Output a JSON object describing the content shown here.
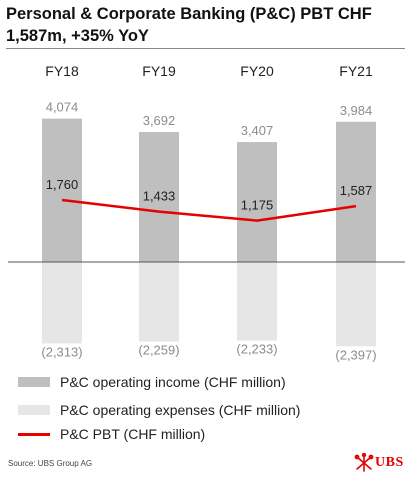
{
  "title": "Personal & Corporate Banking (P&C) PBT CHF 1,587m, +35% YoY",
  "source": "Source: UBS Group AG",
  "logo_text": "UBS",
  "colors": {
    "income": "#bfbfbf",
    "expenses": "#e6e6e6",
    "pbt": "#e60000",
    "axis": "#555555",
    "bar_label": "#8c8c8c"
  },
  "chart_data": {
    "type": "bar",
    "categories": [
      "FY18",
      "FY19",
      "FY20",
      "FY21"
    ],
    "series": [
      {
        "name": "P&C operating income (CHF million)",
        "type": "bar",
        "values": [
          4074,
          3692,
          3407,
          3984
        ],
        "labels": [
          "4,074",
          "3,692",
          "3,407",
          "3,984"
        ]
      },
      {
        "name": "P&C operating expenses (CHF million)",
        "type": "bar",
        "values": [
          -2313,
          -2259,
          -2233,
          -2397
        ],
        "labels": [
          "(2,313)",
          "(2,259)",
          "(2,233)",
          "(2,397)"
        ]
      },
      {
        "name": "P&C PBT (CHF million)",
        "type": "line",
        "values": [
          1760,
          1433,
          1175,
          1587
        ],
        "labels": [
          "1,760",
          "1,433",
          "1,175",
          "1,587"
        ]
      }
    ],
    "ylim": [
      -2600,
      4300
    ],
    "legend_position": "bottom",
    "grid": false
  }
}
